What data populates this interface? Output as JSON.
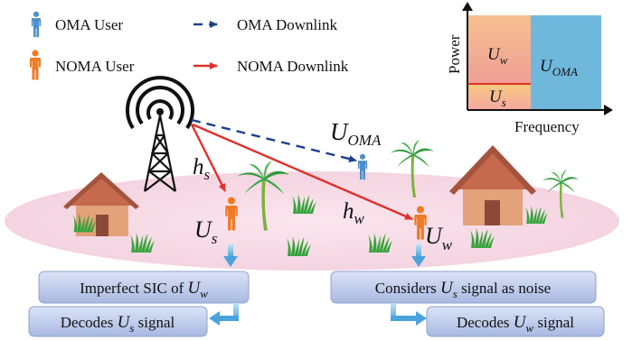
{
  "legend": {
    "oma_user": "OMA User",
    "oma_downlink": "OMA Downlink",
    "noma_user": "NOMA User",
    "noma_downlink": "NOMA Downlink"
  },
  "spectrum": {
    "y_axis": "Power",
    "x_axis": "Frequency",
    "u_w": "U",
    "u_w_sub": "w",
    "u_s": "U",
    "u_s_sub": "s",
    "u_oma": "U",
    "u_oma_sub": "OMA"
  },
  "scene": {
    "u_oma": "U",
    "u_oma_sub": "OMA",
    "h_s": "h",
    "h_s_sub": "s",
    "h_w": "h",
    "h_w_sub": "w",
    "u_s": "U",
    "u_s_sub": "s",
    "u_w": "U",
    "u_w_sub": "w"
  },
  "boxes": {
    "imperfect_sic": {
      "pre": "Imperfect  SIC of ",
      "var": "U",
      "sub": "w",
      "post": ""
    },
    "decodes_us": {
      "pre": "Decodes ",
      "var": "U",
      "sub": "s",
      "post": " signal"
    },
    "considers": {
      "pre": "Considers ",
      "var": "U",
      "sub": "s",
      "post": " signal as noise"
    },
    "decodes_uw": {
      "pre": "Decodes ",
      "var": "U",
      "sub": "w",
      "post": " signal"
    }
  },
  "colors": {
    "oma": "#1f3f8f",
    "noma": "#e0302a",
    "box_fill": "#b8c6e8",
    "ground": "#f5dbe6",
    "spectrum_oma": "#6fb8dc",
    "spectrum_noma_top": "#f2a98c",
    "spectrum_noma_bottom": "#f7c98a"
  }
}
